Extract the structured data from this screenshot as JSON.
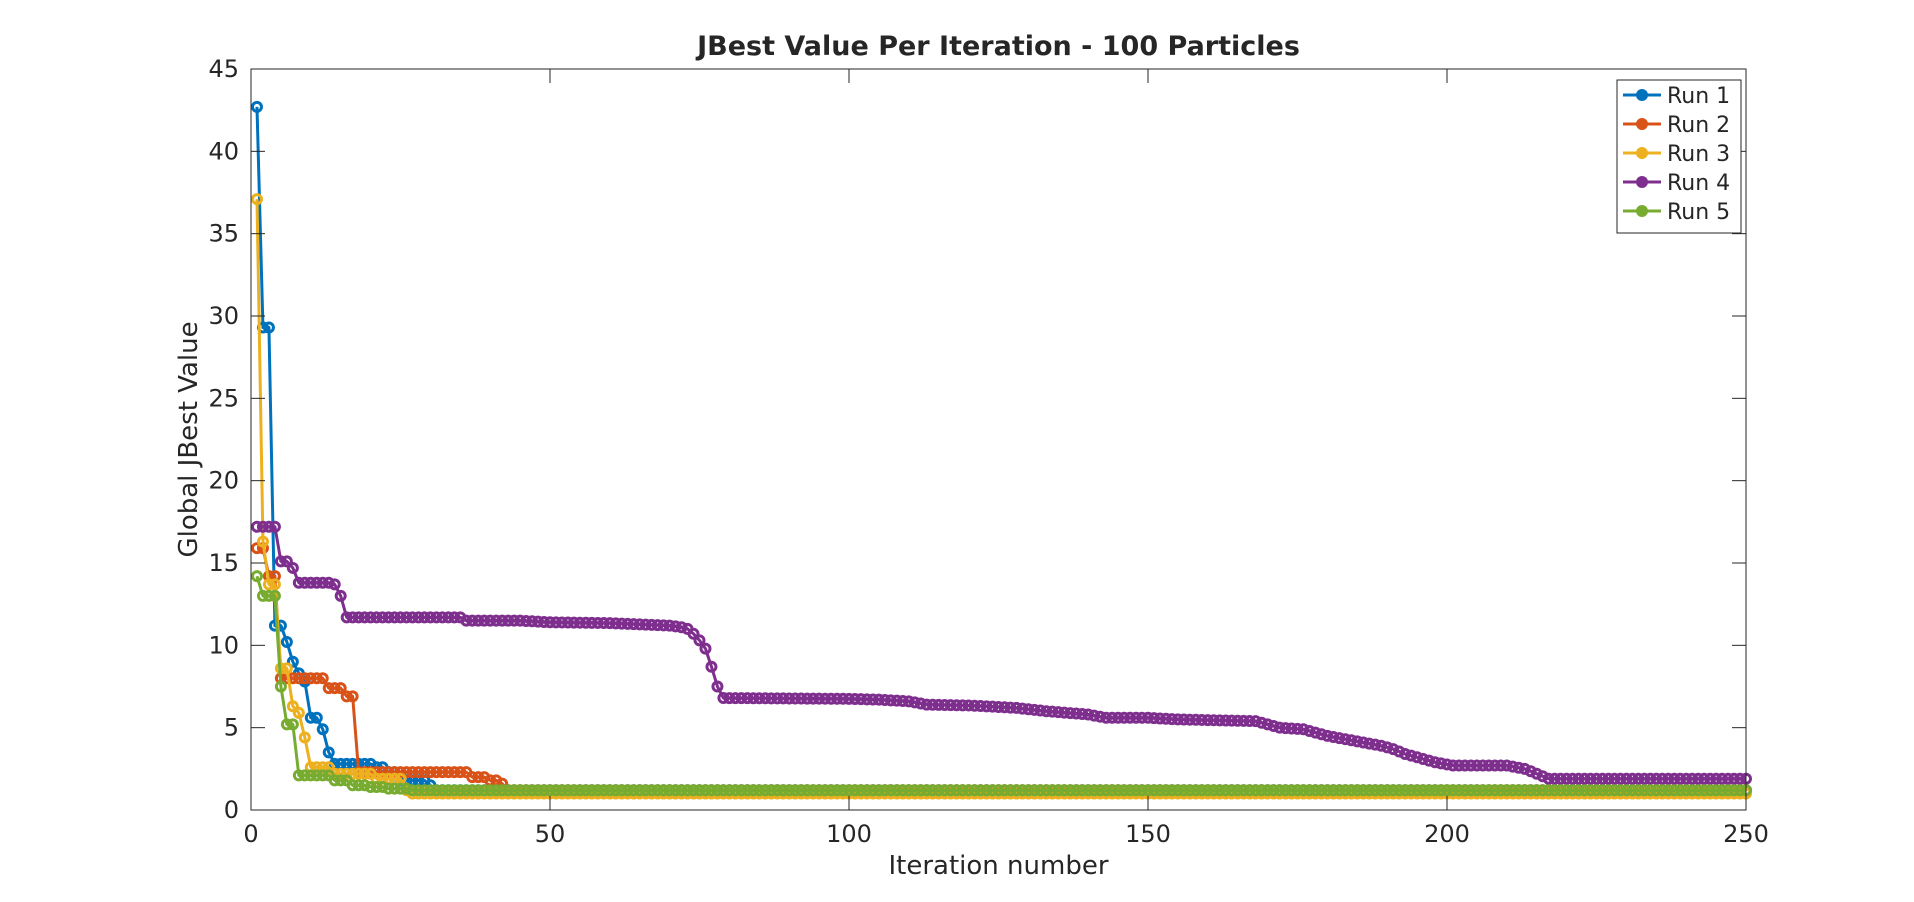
{
  "chart_data": {
    "type": "line",
    "title": "JBest Value Per Iteration - 100 Particles",
    "xlabel": "Iteration number",
    "ylabel": "Global JBest Value",
    "xlim": [
      0,
      250
    ],
    "ylim": [
      0,
      45
    ],
    "xticks": [
      0,
      50,
      100,
      150,
      200,
      250
    ],
    "yticks": [
      0,
      5,
      10,
      15,
      20,
      25,
      30,
      35,
      40,
      45
    ],
    "grid": false,
    "legend_position": "top-right",
    "marker": "circle",
    "series": [
      {
        "name": "Run 1",
        "color": "#0072BD",
        "points": [
          [
            1,
            42.7
          ],
          [
            2,
            29.3
          ],
          [
            3,
            29.3
          ],
          [
            4,
            11.2
          ],
          [
            5,
            11.2
          ],
          [
            6,
            10.2
          ],
          [
            7,
            9.0
          ],
          [
            8,
            8.3
          ],
          [
            9,
            7.8
          ],
          [
            10,
            5.6
          ],
          [
            11,
            5.6
          ],
          [
            12,
            4.9
          ],
          [
            13,
            3.5
          ],
          [
            14,
            2.8
          ],
          [
            20,
            2.8
          ],
          [
            21,
            2.6
          ],
          [
            22,
            2.6
          ],
          [
            23,
            2.3
          ],
          [
            24,
            2.3
          ],
          [
            25,
            1.8
          ],
          [
            29,
            1.8
          ],
          [
            30,
            1.5
          ],
          [
            31,
            1.2
          ],
          [
            250,
            1.2
          ]
        ]
      },
      {
        "name": "Run 2",
        "color": "#D95319",
        "points": [
          [
            1,
            15.9
          ],
          [
            2,
            15.9
          ],
          [
            3,
            14.2
          ],
          [
            4,
            14.2
          ],
          [
            5,
            8.0
          ],
          [
            12,
            8.0
          ],
          [
            13,
            7.4
          ],
          [
            15,
            7.4
          ],
          [
            16,
            6.9
          ],
          [
            17,
            6.9
          ],
          [
            18,
            2.3
          ],
          [
            36,
            2.3
          ],
          [
            37,
            2.0
          ],
          [
            39,
            2.0
          ],
          [
            40,
            1.8
          ],
          [
            41,
            1.8
          ],
          [
            42,
            1.6
          ],
          [
            43,
            1.2
          ],
          [
            250,
            1.2
          ]
        ]
      },
      {
        "name": "Run 3",
        "color": "#EDB120",
        "points": [
          [
            1,
            37.1
          ],
          [
            2,
            16.3
          ],
          [
            3,
            13.7
          ],
          [
            4,
            13.7
          ],
          [
            5,
            8.6
          ],
          [
            6,
            8.6
          ],
          [
            7,
            6.3
          ],
          [
            8,
            5.9
          ],
          [
            9,
            4.4
          ],
          [
            10,
            2.6
          ],
          [
            13,
            2.6
          ],
          [
            14,
            2.2
          ],
          [
            20,
            2.2
          ],
          [
            21,
            1.9
          ],
          [
            25,
            1.9
          ],
          [
            26,
            1.2
          ],
          [
            27,
            1.0
          ],
          [
            250,
            1.0
          ]
        ]
      },
      {
        "name": "Run 4",
        "color": "#7E2F8E",
        "points": [
          [
            1,
            17.2
          ],
          [
            4,
            17.2
          ],
          [
            5,
            15.1
          ],
          [
            6,
            15.1
          ],
          [
            7,
            14.7
          ],
          [
            8,
            13.8
          ],
          [
            13,
            13.8
          ],
          [
            14,
            13.7
          ],
          [
            15,
            13.0
          ],
          [
            16,
            11.7
          ],
          [
            35,
            11.7
          ],
          [
            36,
            11.5
          ],
          [
            45,
            11.5
          ],
          [
            50,
            11.4
          ],
          [
            60,
            11.35
          ],
          [
            70,
            11.2
          ],
          [
            72,
            11.1
          ],
          [
            73,
            11.0
          ],
          [
            74,
            10.7
          ],
          [
            75,
            10.3
          ],
          [
            76,
            9.8
          ],
          [
            77,
            8.7
          ],
          [
            78,
            7.5
          ],
          [
            79,
            6.8
          ],
          [
            100,
            6.75
          ],
          [
            105,
            6.7
          ],
          [
            110,
            6.6
          ],
          [
            113,
            6.4
          ],
          [
            120,
            6.35
          ],
          [
            128,
            6.2
          ],
          [
            133,
            6.0
          ],
          [
            140,
            5.8
          ],
          [
            143,
            5.6
          ],
          [
            150,
            5.6
          ],
          [
            155,
            5.5
          ],
          [
            168,
            5.4
          ],
          [
            170,
            5.2
          ],
          [
            172,
            5.0
          ],
          [
            176,
            4.9
          ],
          [
            178,
            4.7
          ],
          [
            180,
            4.5
          ],
          [
            183,
            4.3
          ],
          [
            186,
            4.1
          ],
          [
            189,
            3.9
          ],
          [
            191,
            3.7
          ],
          [
            193,
            3.4
          ],
          [
            196,
            3.1
          ],
          [
            198,
            2.9
          ],
          [
            201,
            2.7
          ],
          [
            210,
            2.7
          ],
          [
            213,
            2.5
          ],
          [
            215,
            2.2
          ],
          [
            217,
            1.9
          ],
          [
            250,
            1.9
          ]
        ]
      },
      {
        "name": "Run 5",
        "color": "#77AC30",
        "points": [
          [
            1,
            14.2
          ],
          [
            2,
            13.0
          ],
          [
            4,
            13.0
          ],
          [
            5,
            7.5
          ],
          [
            6,
            5.2
          ],
          [
            7,
            5.2
          ],
          [
            8,
            2.1
          ],
          [
            13,
            2.1
          ],
          [
            14,
            1.8
          ],
          [
            16,
            1.8
          ],
          [
            17,
            1.5
          ],
          [
            19,
            1.5
          ],
          [
            20,
            1.4
          ],
          [
            22,
            1.4
          ],
          [
            23,
            1.3
          ],
          [
            26,
            1.3
          ],
          [
            27,
            1.2
          ],
          [
            250,
            1.2
          ]
        ]
      }
    ]
  }
}
